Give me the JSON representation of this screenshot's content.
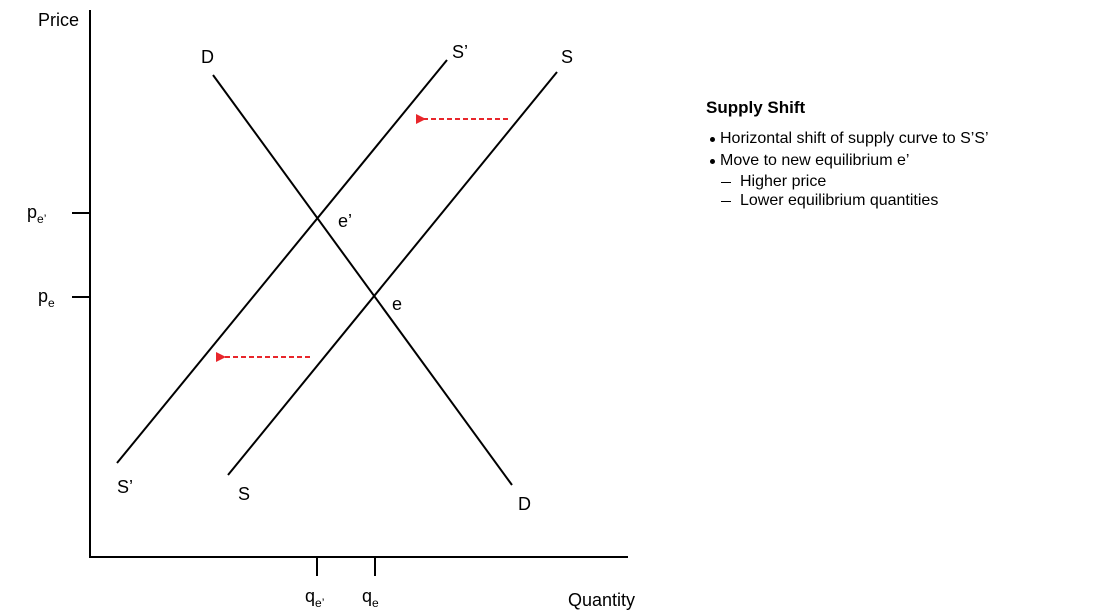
{
  "axes": {
    "y_label": "Price",
    "x_label": "Quantity"
  },
  "curves": [
    {
      "label_start": "D",
      "label_end": "D"
    },
    {
      "label_start": "S’",
      "label_end": "S’"
    },
    {
      "label_start": "S",
      "label_end": "S"
    }
  ],
  "points": [
    {
      "label": "e’"
    },
    {
      "label": "e"
    }
  ],
  "ticks": {
    "y": [
      {
        "base": "p",
        "sub": "e’"
      },
      {
        "base": "p",
        "sub": "e"
      }
    ],
    "x": [
      {
        "base": "q",
        "sub": "e’"
      },
      {
        "base": "q",
        "sub": "e"
      }
    ]
  },
  "notes": {
    "title": "Supply Shift",
    "bullets": [
      {
        "text": "Horizontal shift of supply curve to S’S’",
        "sub": []
      },
      {
        "text": "Move to new equilibrium e’",
        "sub": [
          "Higher price",
          "Lower equilibrium quantities"
        ]
      }
    ]
  }
}
